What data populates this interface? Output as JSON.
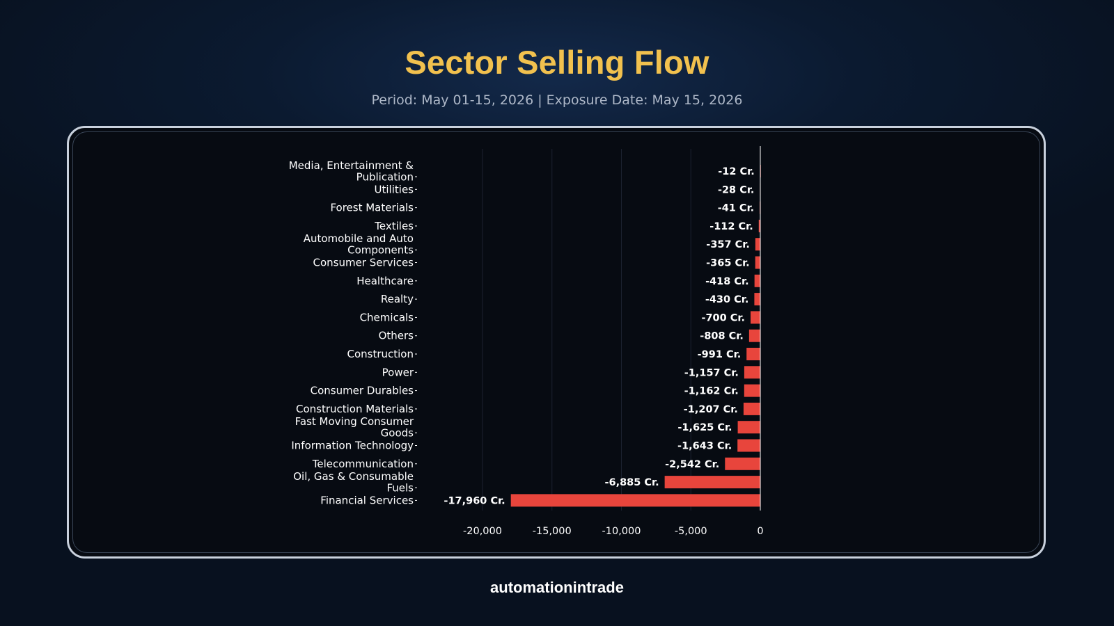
{
  "header": {
    "title": "Sector Selling Flow",
    "subtitle": "Period: May 01-15, 2026 | Exposure Date: May 15, 2026"
  },
  "footer": {
    "brand": "automationintrade"
  },
  "colors": {
    "bar": "#e8453c",
    "title": "#f2c14e",
    "grid": "#1c2230"
  },
  "chart_data": {
    "type": "bar",
    "orientation": "horizontal",
    "title": "",
    "xlabel": "",
    "ylabel": "",
    "xlim": [
      -20000,
      0
    ],
    "xticks": [
      -20000,
      -15000,
      -10000,
      -5000,
      0
    ],
    "xtick_labels": [
      "-20,000",
      "-15,000",
      "-10,000",
      "-5,000",
      "0"
    ],
    "grid": "vertical",
    "value_suffix": " Cr.",
    "categories": [
      [
        "Media, Entertainment &",
        "Publication"
      ],
      [
        "Utilities"
      ],
      [
        "Forest Materials"
      ],
      [
        "Textiles"
      ],
      [
        "Automobile and Auto",
        "Components"
      ],
      [
        "Consumer Services"
      ],
      [
        "Healthcare"
      ],
      [
        "Realty"
      ],
      [
        "Chemicals"
      ],
      [
        "Others"
      ],
      [
        "Construction"
      ],
      [
        "Power"
      ],
      [
        "Consumer Durables"
      ],
      [
        "Construction Materials"
      ],
      [
        "Fast Moving Consumer",
        "Goods"
      ],
      [
        "Information Technology"
      ],
      [
        "Telecommunication"
      ],
      [
        "Oil, Gas & Consumable",
        "Fuels"
      ],
      [
        "Financial Services"
      ]
    ],
    "values": [
      -12,
      -28,
      -41,
      -112,
      -357,
      -365,
      -418,
      -430,
      -700,
      -808,
      -991,
      -1157,
      -1162,
      -1207,
      -1625,
      -1643,
      -2542,
      -6885,
      -17960
    ],
    "value_labels": [
      "-12 Cr.",
      "-28 Cr.",
      "-41 Cr.",
      "-112 Cr.",
      "-357 Cr.",
      "-365 Cr.",
      "-418 Cr.",
      "-430 Cr.",
      "-700 Cr.",
      "-808 Cr.",
      "-991 Cr.",
      "-1,157 Cr.",
      "-1,162 Cr.",
      "-1,207 Cr.",
      "-1,625 Cr.",
      "-1,643 Cr.",
      "-2,542 Cr.",
      "-6,885 Cr.",
      "-17,960 Cr."
    ]
  }
}
